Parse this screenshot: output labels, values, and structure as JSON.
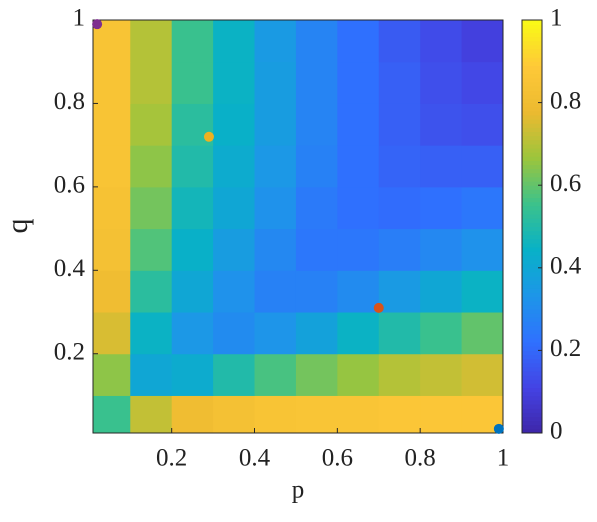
{
  "chart_data": {
    "type": "heatmap",
    "xlabel": "p",
    "ylabel": "q",
    "x": [
      0.05,
      0.15,
      0.25,
      0.35,
      0.45,
      0.55,
      0.65,
      0.75,
      0.85,
      0.95
    ],
    "y": [
      0.05,
      0.15,
      0.25,
      0.35,
      0.45,
      0.55,
      0.65,
      0.75,
      0.85,
      0.95
    ],
    "z": [
      [
        0.55,
        0.72,
        0.8,
        0.83,
        0.85,
        0.86,
        0.86,
        0.87,
        0.87,
        0.87
      ],
      [
        0.65,
        0.4,
        0.42,
        0.5,
        0.57,
        0.62,
        0.66,
        0.7,
        0.72,
        0.74
      ],
      [
        0.75,
        0.45,
        0.34,
        0.3,
        0.33,
        0.38,
        0.45,
        0.5,
        0.55,
        0.6
      ],
      [
        0.8,
        0.52,
        0.4,
        0.32,
        0.27,
        0.27,
        0.3,
        0.35,
        0.4,
        0.45
      ],
      [
        0.83,
        0.58,
        0.44,
        0.36,
        0.29,
        0.24,
        0.24,
        0.26,
        0.29,
        0.32
      ],
      [
        0.84,
        0.62,
        0.47,
        0.4,
        0.32,
        0.25,
        0.22,
        0.21,
        0.22,
        0.24
      ],
      [
        0.85,
        0.65,
        0.5,
        0.42,
        0.34,
        0.27,
        0.22,
        0.19,
        0.18,
        0.18
      ],
      [
        0.85,
        0.68,
        0.52,
        0.44,
        0.36,
        0.28,
        0.22,
        0.18,
        0.15,
        0.14
      ],
      [
        0.85,
        0.7,
        0.55,
        0.45,
        0.36,
        0.28,
        0.22,
        0.18,
        0.14,
        0.12
      ],
      [
        0.85,
        0.7,
        0.55,
        0.45,
        0.35,
        0.28,
        0.22,
        0.17,
        0.13,
        0.1
      ]
    ],
    "xlim": [
      0.01,
      1
    ],
    "ylim": [
      0.01,
      1
    ],
    "xticks": [
      0.2,
      0.4,
      0.6,
      0.8,
      1
    ],
    "yticks": [
      0.2,
      0.4,
      0.6,
      0.8,
      1
    ],
    "colormap": [
      "#3e26a8",
      "#4443e4",
      "#2f71ff",
      "#1d96e8",
      "#08b1c7",
      "#3cc28b",
      "#9cc53c",
      "#ecba30",
      "#fec938",
      "#f9fb15"
    ],
    "clim": [
      0,
      1
    ],
    "cticks": [
      0,
      0.2,
      0.4,
      0.6,
      0.8,
      1
    ],
    "series": [
      {
        "color": "#7e2f8e",
        "x": [
          0.02
        ],
        "values": [
          0.99
        ]
      },
      {
        "color": "#edb120",
        "x": [
          0.29
        ],
        "values": [
          0.72
        ]
      },
      {
        "color": "#d95319",
        "x": [
          0.7
        ],
        "values": [
          0.31
        ]
      },
      {
        "color": "#0072bd",
        "x": [
          0.99
        ],
        "values": [
          0.02
        ]
      }
    ]
  }
}
